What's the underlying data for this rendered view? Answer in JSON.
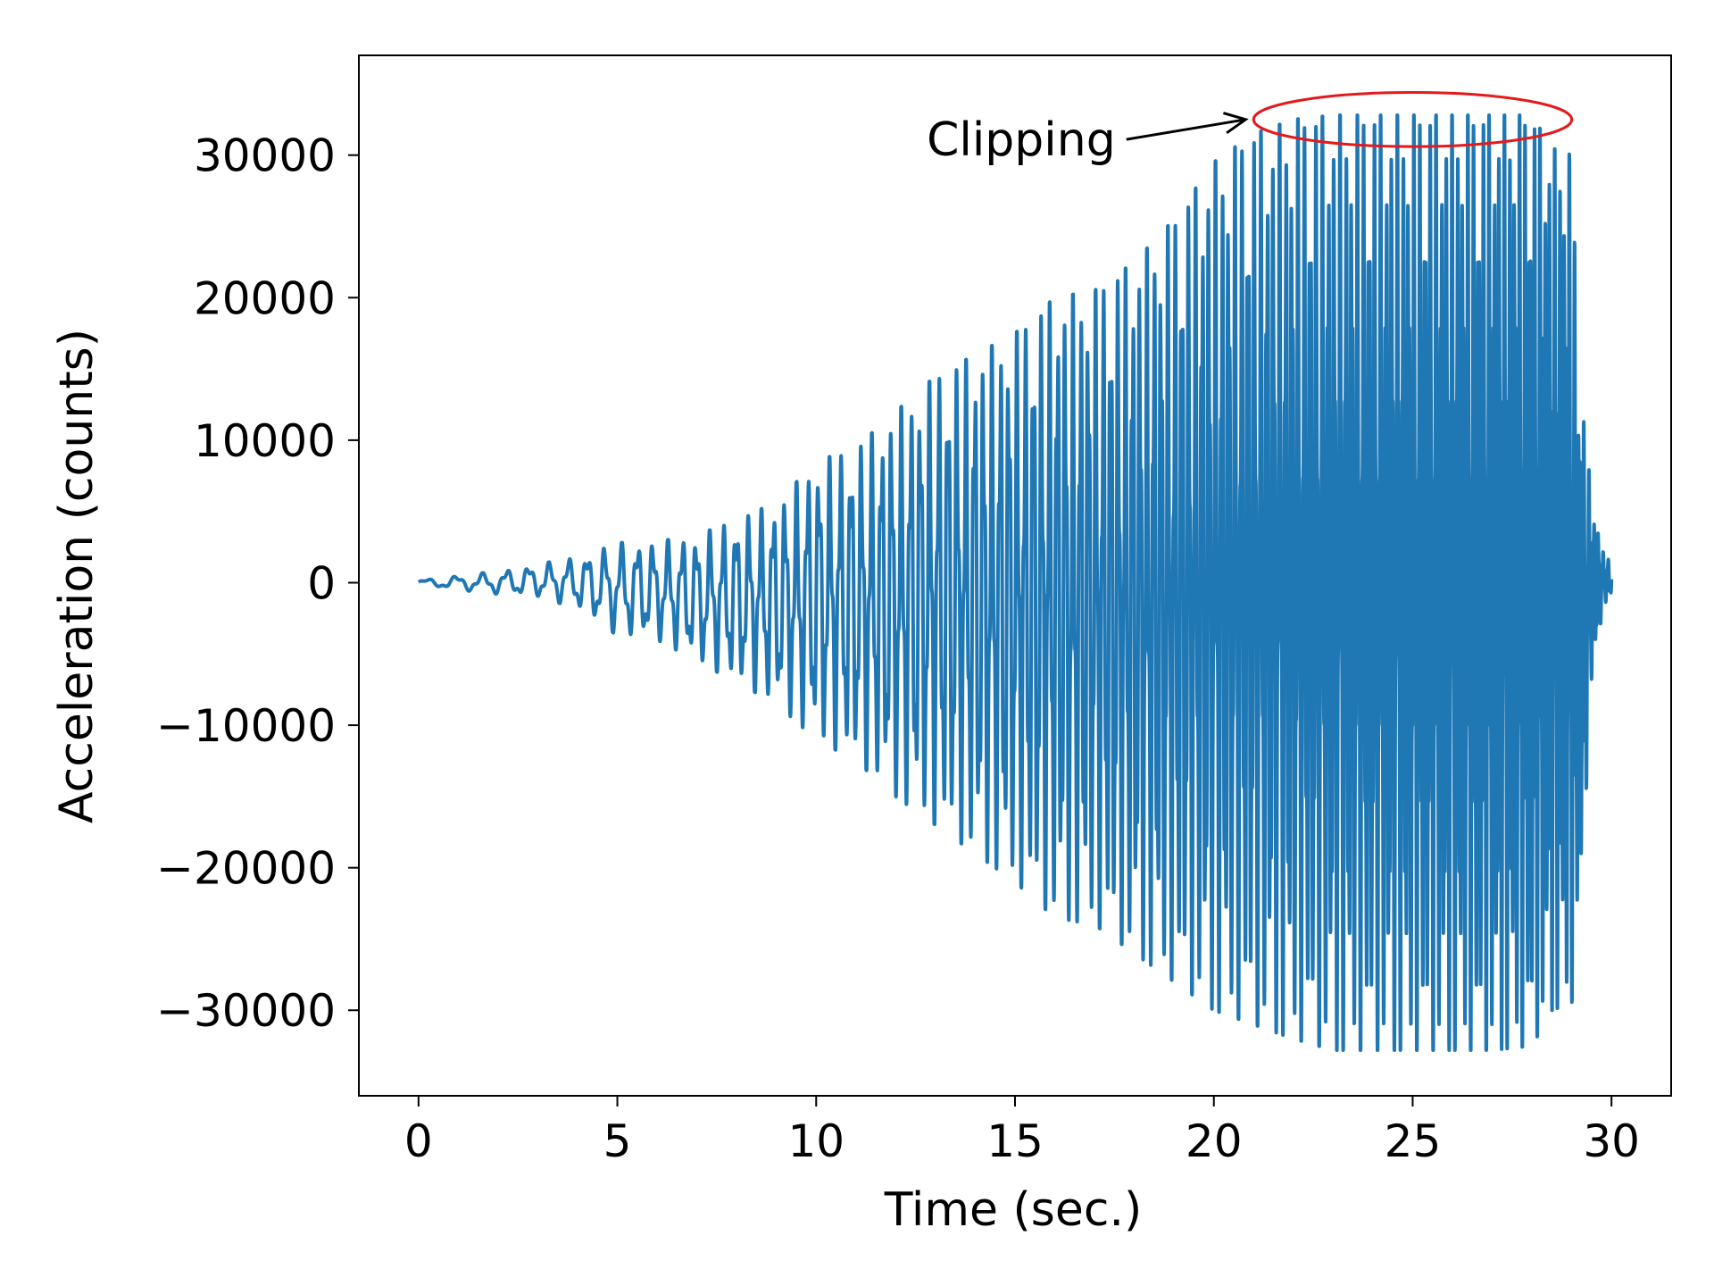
{
  "chart_data": {
    "type": "line",
    "xlabel": "Time (sec.)",
    "ylabel": "Acceleration (counts)",
    "xlim": [
      -1.5,
      31.5
    ],
    "ylim": [
      -36000,
      37000
    ],
    "xticks": [
      0,
      5,
      10,
      15,
      20,
      25,
      30
    ],
    "xtick_labels": [
      "0",
      "5",
      "10",
      "15",
      "20",
      "25",
      "30"
    ],
    "yticks": [
      -30000,
      -20000,
      -10000,
      0,
      10000,
      20000,
      30000
    ],
    "ytick_labels": [
      "−30000",
      "−20000",
      "−10000",
      "0",
      "10000",
      "20000",
      "30000"
    ],
    "grid": false,
    "series": [
      {
        "color": "#1f77b4",
        "envelope": {
          "t": [
            0,
            1,
            2,
            3,
            4,
            5,
            6,
            7,
            8,
            9,
            10,
            11,
            12,
            13,
            14,
            15,
            16,
            17,
            18,
            19,
            20,
            21,
            22,
            23,
            24,
            25,
            26,
            27,
            28,
            28.5,
            29,
            29.2,
            29.5,
            29.8,
            30
          ],
          "max": [
            200,
            500,
            800,
            1300,
            1800,
            2800,
            2900,
            3300,
            4500,
            5600,
            8500,
            9500,
            12000,
            14500,
            16000,
            17500,
            20000,
            20500,
            22500,
            25500,
            29500,
            31500,
            32500,
            32800,
            32800,
            32800,
            32800,
            32800,
            32800,
            30500,
            30000,
            14500,
            6000,
            2000,
            1600
          ],
          "min": [
            -200,
            -500,
            -800,
            -1000,
            -1800,
            -3700,
            -4000,
            -5500,
            -7000,
            -8500,
            -11000,
            -12500,
            -15000,
            -17000,
            -19000,
            -21000,
            -23500,
            -24000,
            -26000,
            -28000,
            -30000,
            -31000,
            -32000,
            -32800,
            -32800,
            -32800,
            -32800,
            -32800,
            -32500,
            -30000,
            -29500,
            -23500,
            -7000,
            -1500,
            -1000
          ]
        }
      }
    ],
    "annotation": {
      "text": "Clipping",
      "ellipse_color": "#e31a1c",
      "ellipse_center": [
        25,
        32500
      ],
      "ellipse_half_width": 4,
      "ellipse_half_height": 1900,
      "arrow_tail": [
        17.8,
        31100
      ],
      "arrow_head": [
        20.8,
        32500
      ]
    }
  }
}
